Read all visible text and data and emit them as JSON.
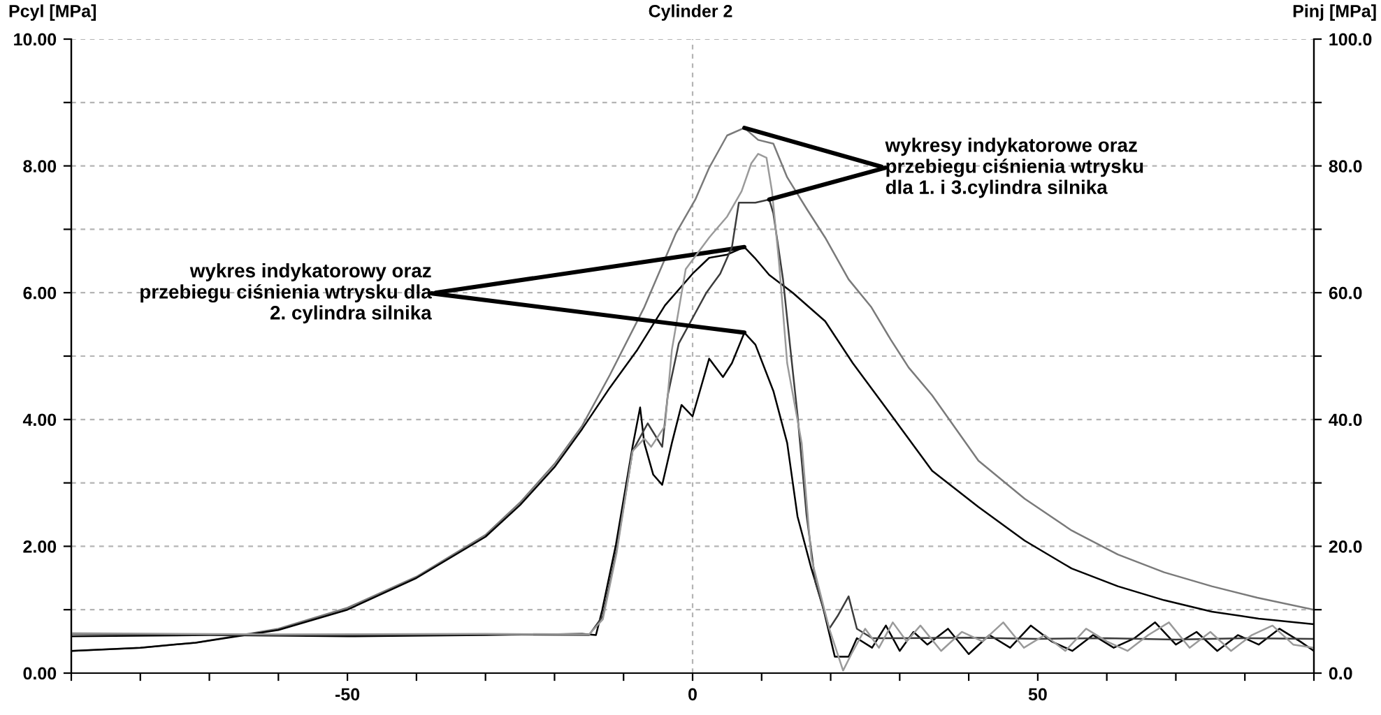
{
  "chart_data": {
    "type": "line",
    "title": "Cylinder 2",
    "ylabel": "Pcyl [MPa]",
    "y2label": "Pinj [MPa]",
    "annotations": [
      {
        "text": "wykresy indykatorowe oraz przebiegu ciśnienia wtrysku dla 1. i 3.cylindra silnika",
        "x": 7.5,
        "y": 8.6
      },
      {
        "text": "wykres indykatorowy oraz przebiegu ciśnienia wtrysku dla 2. cylindra silnika",
        "x": 7.5,
        "y": 6.72
      }
    ],
    "xlim": [
      -90,
      90
    ],
    "xticks": [
      {
        "value": -90,
        "label": null
      },
      {
        "value": -80,
        "label": null
      },
      {
        "value": -70,
        "label": null
      },
      {
        "value": -60,
        "label": null
      },
      -50,
      {
        "value": -40,
        "label": null
      },
      {
        "value": -30,
        "label": null
      },
      {
        "value": -20,
        "label": null
      },
      {
        "value": -10,
        "label": null
      },
      0,
      {
        "value": 10,
        "label": null
      },
      {
        "value": 20,
        "label": null
      },
      {
        "value": 30,
        "label": null
      },
      {
        "value": 40,
        "label": null
      },
      50,
      {
        "value": 60,
        "label": null
      },
      {
        "value": 70,
        "label": null
      },
      {
        "value": 80,
        "label": null
      },
      {
        "value": 90,
        "label": null
      }
    ],
    "ylim": [
      0,
      10
    ],
    "yticks": [
      {
        "value": 0,
        "label": "0.00"
      },
      {
        "value": 1,
        "label": null
      },
      {
        "value": 2,
        "label": "2.00"
      },
      {
        "value": 3,
        "label": null
      },
      {
        "value": 4,
        "label": "4.00"
      },
      {
        "value": 5,
        "label": null
      },
      {
        "value": 6,
        "label": "6.00"
      },
      {
        "value": 7,
        "label": null
      },
      {
        "value": 8,
        "label": "8.00"
      },
      {
        "value": 9,
        "label": null
      },
      {
        "value": 10,
        "label": "10.00"
      }
    ],
    "y2lim": [
      0,
      100
    ],
    "y2ticks": [
      {
        "value": 0,
        "label": "0.0"
      },
      {
        "value": 10,
        "label": null
      },
      {
        "value": 20,
        "label": "20.0"
      },
      {
        "value": 30,
        "label": null
      },
      {
        "value": 40,
        "label": "40.0"
      },
      {
        "value": 50,
        "label": null
      },
      {
        "value": 60,
        "label": "60.0"
      },
      {
        "value": 70,
        "label": null
      },
      {
        "value": 80,
        "label": "80.0"
      },
      {
        "value": 90,
        "label": null
      },
      {
        "value": 100,
        "label": "100.0"
      }
    ],
    "grid": "y",
    "legend": false,
    "marker": "none",
    "line_style": "solid",
    "ref_lines": [
      {
        "axis": "x",
        "value": 0,
        "color": "#b4b4b4",
        "line_style": "dashed"
      }
    ],
    "series": [
      {
        "color": "#7a7a7a",
        "x": [
          -90,
          -80,
          -72,
          -60,
          -50,
          -40,
          -30,
          -25,
          -20,
          -16,
          -12,
          -7,
          -2.4,
          0.4,
          2.4,
          5,
          7.5,
          9.5,
          11.7,
          13.7,
          16.6,
          19.2,
          22.6,
          25.9,
          28.7,
          31.3,
          34.7,
          41.4,
          48.1,
          54.9,
          61.6,
          68.3,
          75.2,
          81.8,
          90
        ],
        "values": [
          0.35,
          0.4,
          0.48,
          0.7,
          1.03,
          1.52,
          2.18,
          2.69,
          3.3,
          3.9,
          4.7,
          5.77,
          6.94,
          7.47,
          7.97,
          8.48,
          8.6,
          8.41,
          8.35,
          7.82,
          7.31,
          6.87,
          6.21,
          5.77,
          5.26,
          4.82,
          4.38,
          3.35,
          2.75,
          2.25,
          1.87,
          1.59,
          1.37,
          1.19,
          1.0
        ]
      },
      {
        "color": "#000000",
        "x": [
          -90,
          -80,
          -72,
          -60,
          -50,
          -40,
          -30,
          -25,
          -20,
          -16,
          -12,
          -8,
          -4,
          0,
          2.4,
          5,
          7.5,
          9,
          11.1,
          14.5,
          19.2,
          23.2,
          27.9,
          34.7,
          41.4,
          48.1,
          54.9,
          61.6,
          68.3,
          75.2,
          82,
          90
        ],
        "values": [
          0.35,
          0.4,
          0.48,
          0.68,
          1.0,
          1.5,
          2.15,
          2.65,
          3.25,
          3.85,
          4.5,
          5.1,
          5.8,
          6.3,
          6.55,
          6.6,
          6.72,
          6.55,
          6.28,
          6.0,
          5.55,
          4.89,
          4.2,
          3.19,
          2.62,
          2.09,
          1.65,
          1.37,
          1.15,
          0.97,
          0.86,
          0.77
        ]
      },
      {
        "color": "#000000",
        "axis": "y2",
        "x": [
          -90,
          -70,
          -50,
          -30,
          -16,
          -14,
          -13.1,
          -11.1,
          -8.7,
          -7.6,
          -7,
          -5.7,
          -4.4,
          -3,
          -1.6,
          0,
          2.4,
          4.4,
          5.7,
          7.5,
          9.1,
          11.7,
          13.7,
          15.2,
          17.2,
          18.8,
          20.6,
          22.6,
          23.8,
          26,
          28,
          30,
          32,
          34,
          37,
          40,
          43,
          46,
          49,
          52,
          55,
          58,
          61,
          64,
          67,
          70,
          73,
          76,
          79,
          82,
          85,
          88,
          90
        ],
        "values": [
          5.8,
          6.0,
          5.8,
          6.0,
          6.2,
          6.0,
          9.9,
          20.3,
          35.7,
          41.9,
          36.3,
          31.3,
          29.7,
          36.3,
          42.3,
          40.5,
          49.6,
          46.7,
          48.9,
          53.7,
          51.8,
          44.5,
          36.3,
          24.7,
          16.5,
          10.8,
          2.6,
          2.6,
          5.5,
          4.0,
          7.5,
          3.5,
          6.5,
          4.5,
          7.0,
          3.0,
          6.0,
          4.0,
          7.5,
          5.0,
          3.5,
          6.0,
          4.0,
          5.5,
          8.0,
          4.5,
          6.5,
          3.5,
          6.0,
          4.5,
          7.0,
          5.0,
          3.5
        ]
      },
      {
        "color": "#3c3c3c",
        "axis": "y2",
        "x": [
          -90,
          -60,
          -30,
          -15,
          -13,
          -11,
          -8.7,
          -6.5,
          -4.4,
          -3.6,
          -2,
          0,
          2,
          4,
          5.7,
          6.7,
          9.1,
          11.1,
          11.7,
          13.1,
          14.1,
          15.2,
          16.5,
          17.8,
          19.8,
          21,
          22.6,
          23.8,
          26,
          30,
          40,
          50,
          60,
          70,
          80,
          90
        ],
        "values": [
          6.2,
          6.0,
          6.1,
          6.0,
          9.0,
          19.5,
          35,
          39.4,
          35.7,
          43.8,
          52,
          56,
          60,
          63,
          67.2,
          74.2,
          74.2,
          74.7,
          72.5,
          62.1,
          51.8,
          40.7,
          25,
          14.3,
          7.0,
          9,
          12.1,
          7.0,
          5.5,
          5.5,
          5.6,
          5.4,
          5.5,
          5.3,
          5.5,
          5.4
        ]
      },
      {
        "color": "#9a9a9a",
        "axis": "y2",
        "x": [
          -90,
          -60,
          -30,
          -15,
          -13,
          -11,
          -8.7,
          -7,
          -6,
          -4,
          -3,
          -1,
          2.4,
          5,
          7.1,
          8.5,
          9.5,
          10.7,
          11.5,
          12.5,
          13.7,
          15.8,
          17.2,
          19.8,
          21.8,
          23,
          25,
          27,
          29,
          31,
          33,
          36,
          39,
          42,
          45,
          48,
          51,
          54,
          57,
          60,
          63,
          66,
          69,
          72,
          75,
          78,
          81,
          84,
          87,
          90
        ],
        "values": [
          6.3,
          6.1,
          6.2,
          6.1,
          8.5,
          19,
          35,
          37,
          35.7,
          39,
          51,
          63.7,
          68.7,
          72,
          76,
          80.4,
          81.9,
          81.3,
          76,
          65,
          48.9,
          36.3,
          18.1,
          7.0,
          0.4,
          3,
          7,
          4,
          8,
          5,
          7.5,
          3.5,
          6.5,
          5,
          8,
          4,
          6,
          3.5,
          7,
          5,
          3.5,
          6,
          8,
          4,
          6.5,
          3.5,
          6,
          7.5,
          4.5,
          4
        ]
      }
    ]
  }
}
